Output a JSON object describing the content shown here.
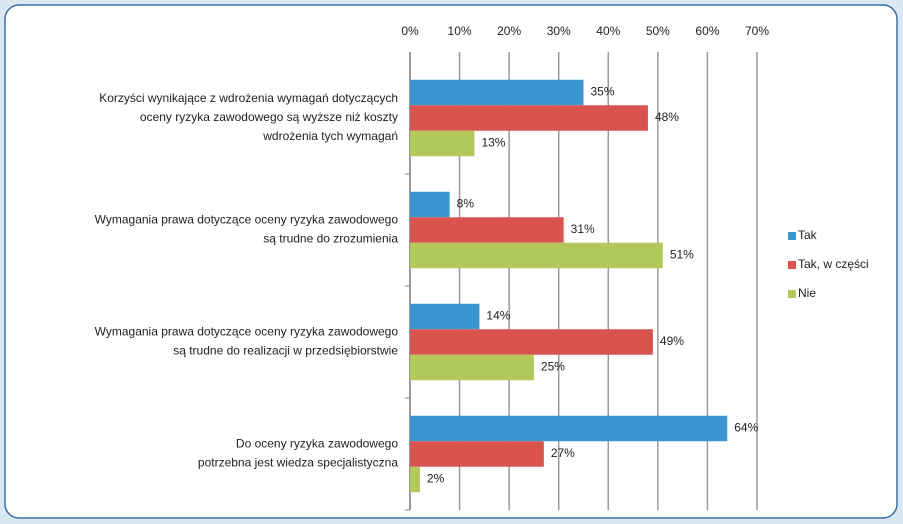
{
  "chart_data": {
    "type": "hbar",
    "categories": [
      [
        "Korzyści wynikające z wdrożenia wymagań dotyczących",
        "oceny ryzyka zawodowego są wyższe niż koszty",
        "wdrożenia tych wymagań"
      ],
      [
        "Wymagania prawa dotyczące oceny ryzyka zawodowego",
        "są trudne do zrozumienia"
      ],
      [
        "Wymagania prawa dotyczące oceny ryzyka zawodowego",
        "są trudne do realizacji w przedsiębiorstwie"
      ],
      [
        "Do oceny ryzyka zawodowego",
        "potrzebna jest wiedza specjalistyczna"
      ]
    ],
    "series": [
      {
        "name": "Tak",
        "color": "#3b96cf",
        "values": [
          35,
          8,
          14,
          64
        ],
        "value_labels": [
          "35%",
          "8%",
          "14%",
          "64%"
        ]
      },
      {
        "name": "Tak, w części",
        "color": "#d9534f",
        "values": [
          48,
          31,
          49,
          27
        ],
        "value_labels": [
          "48%",
          "31%",
          "49%",
          "27%"
        ]
      },
      {
        "name": "Nie",
        "color": "#b3c85a",
        "values": [
          13,
          51,
          25,
          2
        ],
        "value_labels": [
          "13%",
          "51%",
          "25%",
          "2%"
        ]
      }
    ],
    "xlim": [
      0,
      70
    ],
    "xticks": [
      {
        "value": 0,
        "label": "0%"
      },
      {
        "value": 10,
        "label": "10%"
      },
      {
        "value": 20,
        "label": "20%"
      },
      {
        "value": 30,
        "label": "30%"
      },
      {
        "value": 40,
        "label": "40%"
      },
      {
        "value": 50,
        "label": "50%"
      },
      {
        "value": 60,
        "label": "60%"
      },
      {
        "value": 70,
        "label": "70%"
      }
    ],
    "grid": true,
    "legend": "right"
  }
}
